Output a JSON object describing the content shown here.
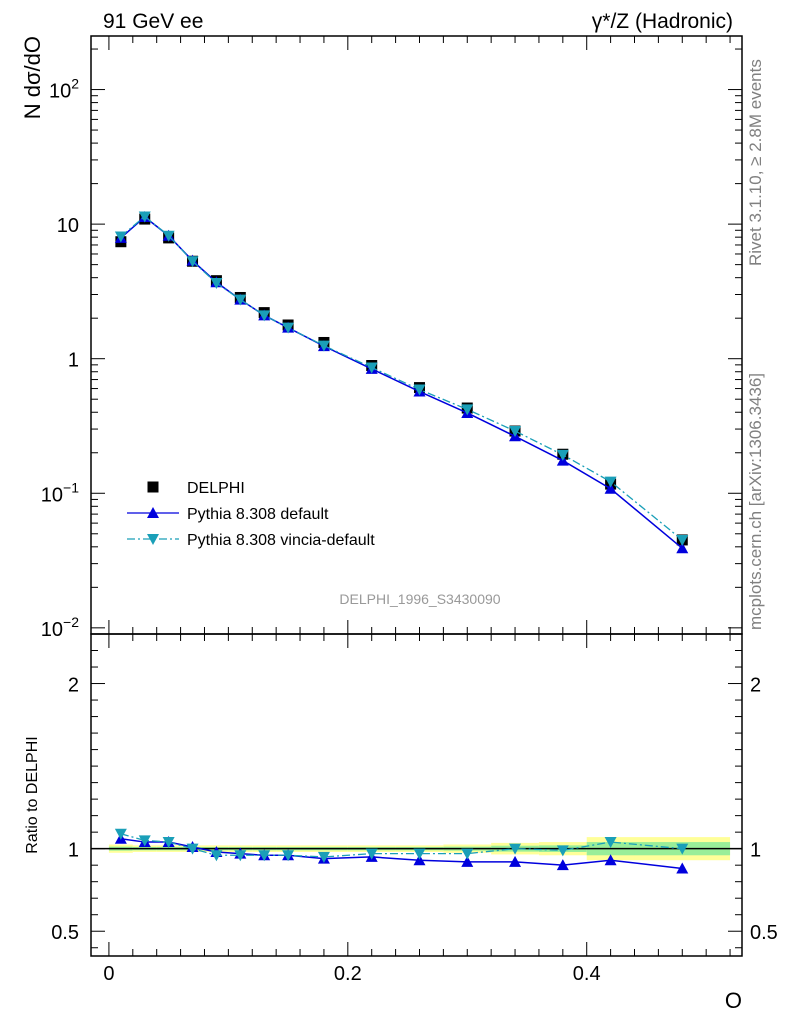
{
  "header": {
    "left": "91 GeV ee",
    "right": "γ*/Z (Hadronic)"
  },
  "side_labels": {
    "rivet": "Rivet 3.1.10, ≥ 2.8M events",
    "mcplots": "mcplots.cern.ch [arXiv:1306.3436]"
  },
  "watermark": "DELPHI_1996_S3430090",
  "colors": {
    "data": "#000000",
    "default": "#0000dd",
    "vincia": "#1a9fb8",
    "band_outer": "#ffff99",
    "band_inner": "#99ee99"
  },
  "chart_data": [
    {
      "type": "line",
      "panel": "main",
      "ylabel": "N dσ/dO",
      "yscale": "log",
      "xlim": [
        -0.015,
        0.53
      ],
      "ylim": [
        0.009,
        250
      ],
      "yticks": [
        {
          "value": 0.01,
          "label_base": "10",
          "label_exp": "−2"
        },
        {
          "value": 0.1,
          "label_base": "10",
          "label_exp": "−1"
        },
        {
          "value": 1,
          "label_base": "1",
          "label_exp": ""
        },
        {
          "value": 10,
          "label_base": "10",
          "label_exp": ""
        },
        {
          "value": 100,
          "label_base": "10",
          "label_exp": "2"
        }
      ],
      "x": [
        0.01,
        0.03,
        0.05,
        0.07,
        0.09,
        0.11,
        0.13,
        0.15,
        0.18,
        0.22,
        0.26,
        0.3,
        0.34,
        0.38,
        0.42,
        0.48
      ],
      "series": [
        {
          "name": "DELPHI",
          "style": "data",
          "values": [
            7.4,
            10.9,
            7.9,
            5.3,
            3.8,
            2.85,
            2.2,
            1.78,
            1.32,
            0.89,
            0.61,
            0.43,
            0.29,
            0.195,
            0.117,
            0.045
          ]
        },
        {
          "name": "Pythia 8.308 default",
          "style": "default",
          "values": [
            7.9,
            11.3,
            8.2,
            5.35,
            3.7,
            2.75,
            2.1,
            1.7,
            1.24,
            0.84,
            0.57,
            0.395,
            0.265,
            0.175,
            0.108,
            0.039
          ]
        },
        {
          "name": "Pythia 8.308 vincia-default",
          "style": "vincia",
          "values": [
            8.1,
            11.4,
            8.2,
            5.3,
            3.65,
            2.75,
            2.1,
            1.7,
            1.25,
            0.86,
            0.59,
            0.42,
            0.29,
            0.193,
            0.122,
            0.045
          ]
        }
      ],
      "legend_position": "bottom-left"
    },
    {
      "type": "line",
      "panel": "ratio",
      "ylabel": "Ratio to DELPHI",
      "xlabel": "O",
      "xlim": [
        -0.015,
        0.53
      ],
      "ylim": [
        0.35,
        2.3
      ],
      "yticks": [
        {
          "value": 0.5,
          "label": "0.5"
        },
        {
          "value": 1,
          "label": "1"
        },
        {
          "value": 2,
          "label": "2"
        }
      ],
      "xticks": [
        {
          "value": 0,
          "label": "0"
        },
        {
          "value": 0.2,
          "label": "0.2"
        },
        {
          "value": 0.4,
          "label": "0.4"
        }
      ],
      "x": [
        0.01,
        0.03,
        0.05,
        0.07,
        0.09,
        0.11,
        0.13,
        0.15,
        0.18,
        0.22,
        0.26,
        0.3,
        0.34,
        0.38,
        0.42,
        0.48
      ],
      "bins": [
        [
          0,
          0.02
        ],
        [
          0.02,
          0.04
        ],
        [
          0.04,
          0.06
        ],
        [
          0.06,
          0.08
        ],
        [
          0.08,
          0.1
        ],
        [
          0.1,
          0.12
        ],
        [
          0.12,
          0.14
        ],
        [
          0.14,
          0.16
        ],
        [
          0.16,
          0.2
        ],
        [
          0.2,
          0.24
        ],
        [
          0.24,
          0.28
        ],
        [
          0.28,
          0.32
        ],
        [
          0.32,
          0.36
        ],
        [
          0.36,
          0.4
        ],
        [
          0.4,
          0.44
        ],
        [
          0.44,
          0.52
        ]
      ],
      "band_outer": [
        0.025,
        0.02,
        0.02,
        0.02,
        0.02,
        0.02,
        0.02,
        0.02,
        0.02,
        0.02,
        0.02,
        0.025,
        0.035,
        0.04,
        0.07,
        0.07
      ],
      "band_inner": [
        0.012,
        0.01,
        0.01,
        0.01,
        0.01,
        0.01,
        0.01,
        0.01,
        0.01,
        0.01,
        0.01,
        0.012,
        0.018,
        0.02,
        0.04,
        0.04
      ],
      "series": [
        {
          "name": "Pythia 8.308 default",
          "style": "default",
          "values": [
            1.06,
            1.04,
            1.04,
            1.01,
            0.98,
            0.97,
            0.96,
            0.96,
            0.94,
            0.95,
            0.93,
            0.92,
            0.92,
            0.9,
            0.93,
            0.88
          ]
        },
        {
          "name": "Pythia 8.308 vincia-default",
          "style": "vincia",
          "values": [
            1.09,
            1.05,
            1.04,
            1.0,
            0.96,
            0.96,
            0.96,
            0.96,
            0.95,
            0.97,
            0.97,
            0.97,
            1.0,
            0.99,
            1.04,
            1.0
          ]
        }
      ]
    }
  ]
}
